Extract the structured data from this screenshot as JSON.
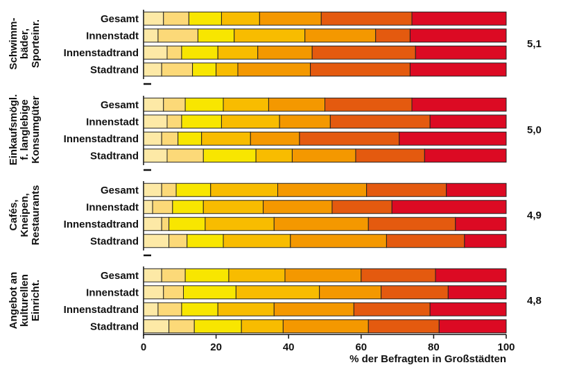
{
  "chart_data": {
    "type": "bar",
    "stacked": true,
    "orientation": "horizontal",
    "xlabel": "% der Befragten in Großstädten",
    "xlim": [
      0,
      100
    ],
    "xticks": [
      "0",
      "20",
      "40",
      "60",
      "80",
      "100"
    ],
    "segment_colors": [
      "#fde9a6",
      "#fcd978",
      "#f8e600",
      "#f8bc00",
      "#f49800",
      "#e45a0f",
      "#dc0a23"
    ],
    "groups": [
      {
        "label_lines": [
          "Schwimm-",
          "bäder,",
          "Sporteinr."
        ],
        "value": "5,1",
        "rows": [
          {
            "label": "Gesamt",
            "segments": [
              5.5,
              7,
              9,
              10.5,
              17,
              25,
              26
            ]
          },
          {
            "label": "Innenstadt",
            "segments": [
              4,
              11,
              10,
              19.5,
              19.5,
              9.5,
              26.5
            ]
          },
          {
            "label": "Innenstadtrand",
            "segments": [
              6.5,
              4,
              10,
              11,
              15,
              28.5,
              25
            ]
          },
          {
            "label": "Stadtrand",
            "segments": [
              5,
              8.5,
              6.5,
              6,
              20,
              27.5,
              26.5
            ]
          }
        ]
      },
      {
        "label_lines": [
          "Einkaufsmögl.",
          "f. langlebige",
          "Konsumgüter"
        ],
        "value": "5,0",
        "rows": [
          {
            "label": "Gesamt",
            "segments": [
              5.5,
              6,
              10.5,
              12.5,
              15.5,
              24,
              26
            ]
          },
          {
            "label": "Innenstadt",
            "segments": [
              6.5,
              4,
              11,
              16,
              14,
              27.5,
              21
            ]
          },
          {
            "label": "Innenstadtrand",
            "segments": [
              5,
              4.5,
              6.5,
              13.5,
              13.5,
              27.5,
              29.5
            ]
          },
          {
            "label": "Stadtrand",
            "segments": [
              6.5,
              10,
              14.5,
              10,
              17.5,
              19,
              22.5
            ]
          }
        ]
      },
      {
        "label_lines": [
          "Cafés,",
          "Kneipen,",
          "Restaurants"
        ],
        "value": "4,9",
        "rows": [
          {
            "label": "Gesamt",
            "segments": [
              5,
              4,
              9.5,
              18.5,
              24.5,
              22,
              16.5
            ]
          },
          {
            "label": "Innenstadt",
            "segments": [
              2.5,
              5.5,
              8.5,
              16.5,
              19,
              16.5,
              31.5
            ]
          },
          {
            "label": "Innenstadtrand",
            "segments": [
              5,
              2,
              10,
              19,
              26,
              24,
              14
            ]
          },
          {
            "label": "Stadtrand",
            "segments": [
              7,
              5,
              10,
              18.5,
              26.5,
              21.5,
              11.5
            ]
          }
        ]
      },
      {
        "label_lines": [
          "Angebot an",
          "kulturellen",
          "Einricht."
        ],
        "value": "4,8",
        "rows": [
          {
            "label": "Gesamt",
            "segments": [
              5,
              6.5,
              12,
              15.5,
              21,
              20.5,
              19.5
            ]
          },
          {
            "label": "Innenstadt",
            "segments": [
              5.5,
              5.5,
              14.5,
              23,
              17,
              18.5,
              16
            ]
          },
          {
            "label": "Innenstadtrand",
            "segments": [
              4,
              6.5,
              10,
              15.5,
              22,
              21,
              21
            ]
          },
          {
            "label": "Stadtrand",
            "segments": [
              7,
              7,
              13,
              11.5,
              23.5,
              19.5,
              18.5
            ]
          }
        ]
      }
    ]
  }
}
